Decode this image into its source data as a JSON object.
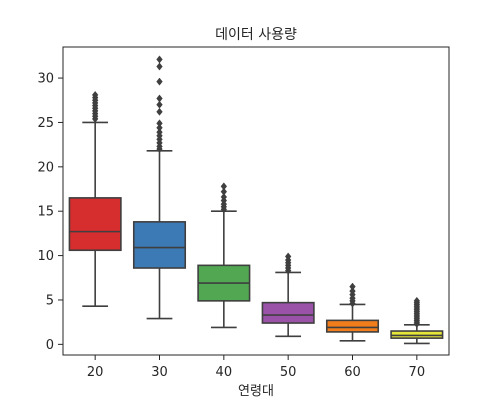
{
  "chart_data": {
    "type": "boxplot",
    "title": "데이터 사용량",
    "xlabel": "연령대",
    "ylabel": "",
    "ylim": [
      -1.2,
      33.5
    ],
    "yticks": [
      0,
      5,
      10,
      15,
      20,
      25,
      30
    ],
    "grid": false,
    "categories": [
      "20",
      "30",
      "40",
      "50",
      "60",
      "70"
    ],
    "boxes": [
      {
        "category": "20",
        "color": "#d62d2f",
        "whisker_low": 4.3,
        "q1": 10.6,
        "median": 12.7,
        "q3": 16.5,
        "whisker_high": 25.0,
        "outliers": [
          25.4,
          25.7,
          26.0,
          26.3,
          26.6,
          26.9,
          27.2,
          27.5,
          27.8,
          28.1
        ]
      },
      {
        "category": "30",
        "color": "#3c7ab5",
        "whisker_low": 2.9,
        "q1": 8.6,
        "median": 10.9,
        "q3": 13.8,
        "whisker_high": 21.8,
        "outliers": [
          22.0,
          22.3,
          22.7,
          23.1,
          23.5,
          23.9,
          24.4,
          24.9,
          26.2,
          27.0,
          27.7,
          29.6,
          31.3,
          32.1
        ]
      },
      {
        "category": "40",
        "color": "#52a852",
        "whisker_low": 1.9,
        "q1": 4.9,
        "median": 6.9,
        "q3": 8.9,
        "whisker_high": 15.0,
        "outliers": [
          15.2,
          15.5,
          15.8,
          16.2,
          16.6,
          17.2,
          17.8
        ]
      },
      {
        "category": "50",
        "color": "#9a52a8",
        "whisker_low": 0.9,
        "q1": 2.4,
        "median": 3.3,
        "q3": 4.7,
        "whisker_high": 8.1,
        "outliers": [
          8.3,
          8.6,
          8.9,
          9.2,
          9.5,
          9.9
        ]
      },
      {
        "category": "60",
        "color": "#f27e1b",
        "whisker_low": 0.4,
        "q1": 1.4,
        "median": 1.9,
        "q3": 2.7,
        "whisker_high": 4.5,
        "outliers": [
          4.6,
          4.9,
          5.2,
          5.6,
          6.0,
          6.5
        ]
      },
      {
        "category": "70",
        "color": "#e6e639",
        "whisker_low": 0.1,
        "q1": 0.7,
        "median": 1.0,
        "q3": 1.5,
        "whisker_high": 2.2,
        "outliers": [
          2.3,
          2.5,
          2.7,
          2.9,
          3.1,
          3.3,
          3.5,
          3.7,
          3.9,
          4.1,
          4.3,
          4.5,
          4.7,
          4.9
        ]
      }
    ]
  }
}
